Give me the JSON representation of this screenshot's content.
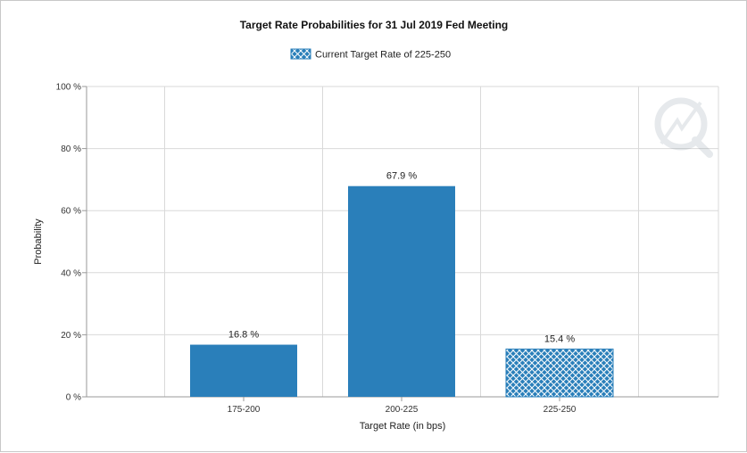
{
  "chart_data": {
    "type": "bar",
    "title": "Target Rate Probabilities for 31 Jul 2019 Fed Meeting",
    "xlabel": "Target Rate (in bps)",
    "ylabel": "Probability",
    "categories": [
      "175-200",
      "200-225",
      "225-250"
    ],
    "values": [
      16.8,
      67.9,
      15.4
    ],
    "data_labels": [
      "16.8 %",
      "67.9 %",
      "15.4 %"
    ],
    "current_category_index": 2,
    "ylim": [
      0,
      100
    ],
    "yticks": [
      0,
      20,
      40,
      60,
      80,
      100
    ],
    "ytick_labels": [
      "0 %",
      "20 %",
      "40 %",
      "60 %",
      "80 %",
      "100 %"
    ],
    "legend": {
      "placement": "top-center",
      "entries": [
        "Current Target Rate of 225-250"
      ]
    },
    "grid": true,
    "colors": {
      "bar": "#2a7fba",
      "grid": "#d9d9d9",
      "hatch_line": "#ffffff"
    }
  }
}
